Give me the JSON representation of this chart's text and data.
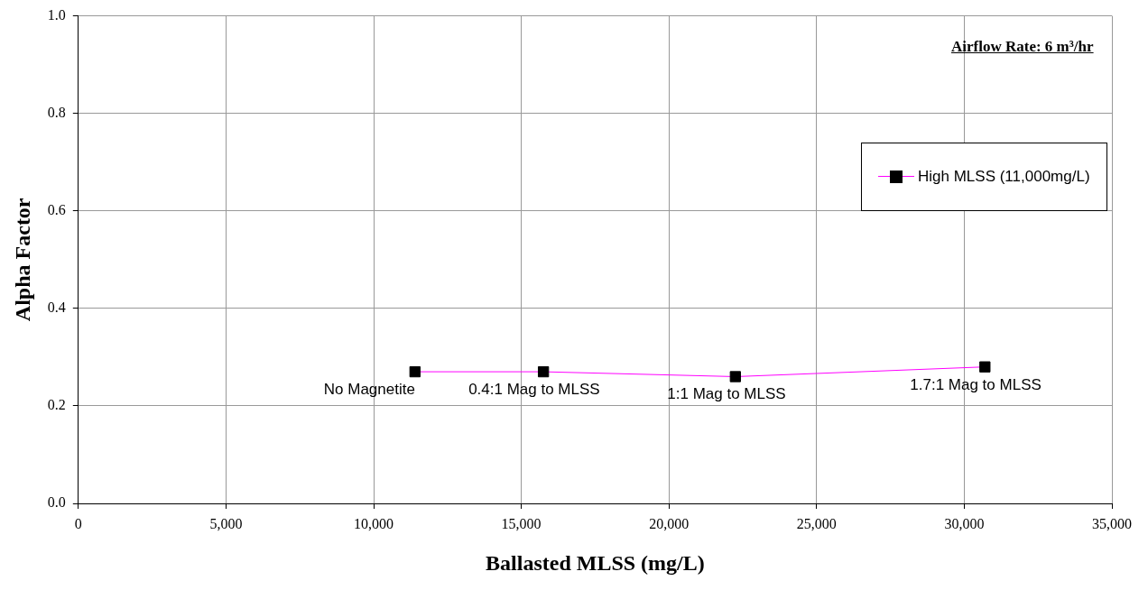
{
  "chart_data": {
    "type": "line",
    "xlabel": "Ballasted MLSS (mg/L)",
    "ylabel": "Alpha Factor",
    "series": [
      {
        "name": "High MLSS (11,000mg/L)",
        "color": "#ff00ff",
        "colors": [
          "#000000",
          "#000000",
          "#000000",
          "#000000"
        ],
        "x": [
          11400,
          15750,
          22250,
          30700
        ],
        "values": [
          0.27,
          0.27,
          0.26,
          0.28
        ]
      }
    ],
    "xlim": [
      0,
      35000
    ],
    "xticks": [
      0,
      {
        "value": 5000,
        "label": "5,000"
      },
      {
        "value": 10000,
        "label": "10,000"
      },
      {
        "value": 15000,
        "label": "15,000"
      },
      {
        "value": 20000,
        "label": "20,000"
      },
      {
        "value": 25000,
        "label": "25,000"
      },
      {
        "value": 30000,
        "label": "30,000"
      },
      {
        "value": 35000,
        "label": "35,000"
      }
    ],
    "ylim": [
      0,
      1
    ],
    "yticks": [
      {
        "value": 0,
        "label": "0.0"
      },
      0.2,
      0.4,
      0.6,
      0.8,
      {
        "value": 1,
        "label": "1.0"
      }
    ],
    "grid": true,
    "legend": "right",
    "marker": "square",
    "line_style": "solid",
    "annotations": [
      "Airflow Rate: 6 m³/hr",
      {
        "text": "No Magnetite",
        "x": 11400,
        "y": 0.27
      },
      {
        "text": "0.4:1 Mag to MLSS",
        "x": 15750,
        "y": 0.27
      },
      {
        "text": "1:1 Mag to MLSS",
        "x": 22250,
        "y": 0.26
      },
      {
        "text": "1.7:1 Mag to MLSS",
        "x": 30700,
        "y": 0.28
      }
    ]
  }
}
